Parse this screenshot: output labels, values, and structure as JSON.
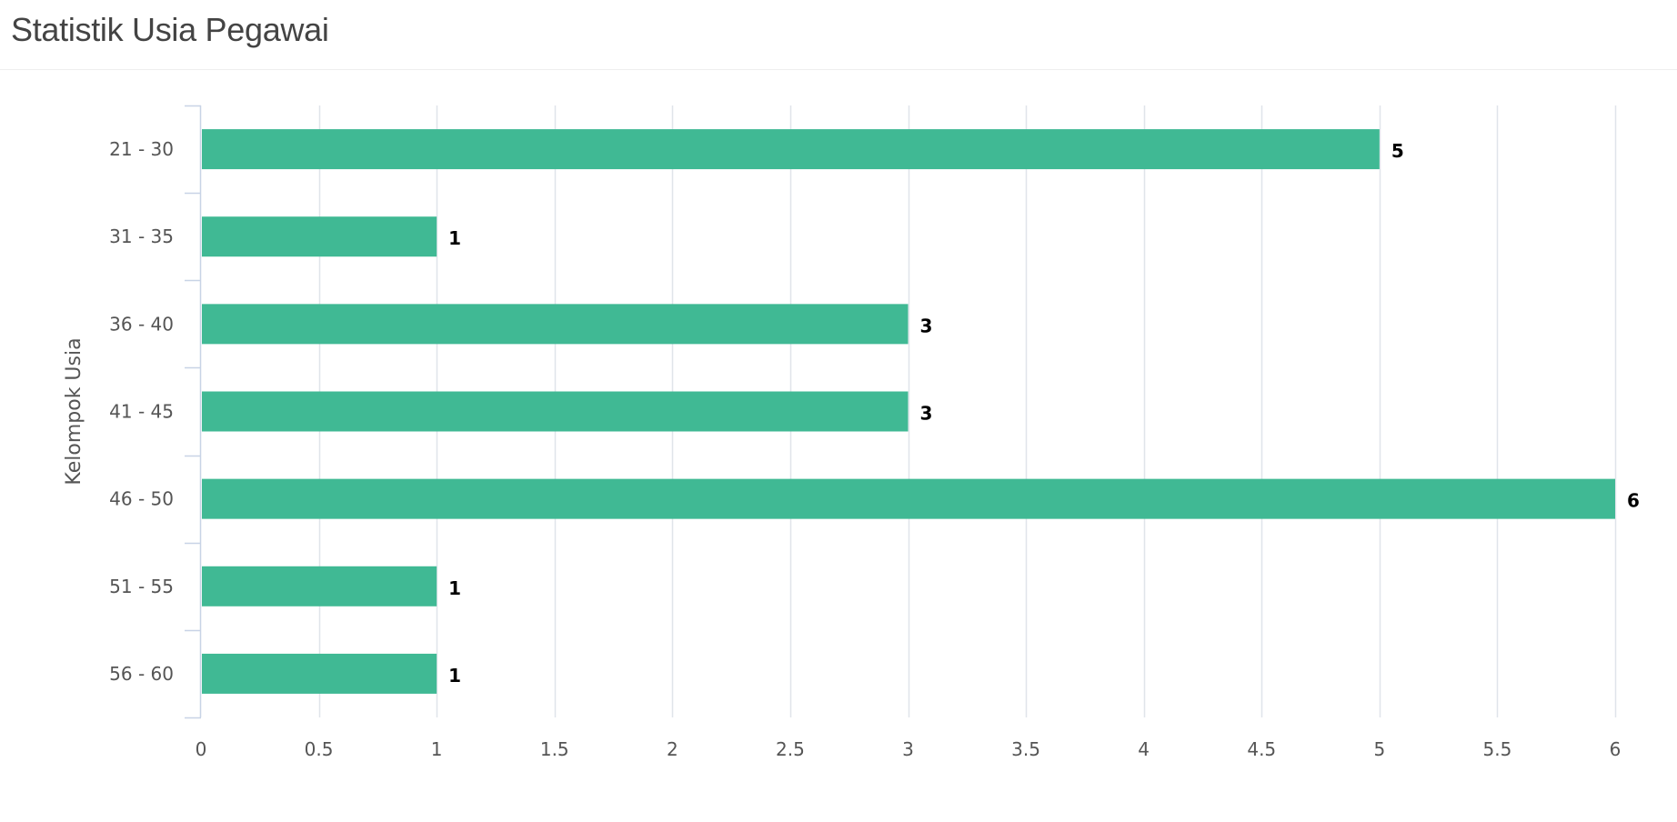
{
  "header": {
    "title": "Statistik Usia Pegawai"
  },
  "chart_data": {
    "type": "bar",
    "orientation": "horizontal",
    "categories": [
      "21 - 30",
      "31 - 35",
      "36 - 40",
      "41 - 45",
      "46 - 50",
      "51 - 55",
      "56 - 60"
    ],
    "values": [
      5,
      1,
      3,
      3,
      6,
      1,
      1
    ],
    "data_labels": [
      "5",
      "1",
      "3",
      "3",
      "6",
      "1",
      "1"
    ],
    "xlim": [
      0,
      6
    ],
    "x_ticks": [
      "0",
      "0.5",
      "1",
      "1.5",
      "2",
      "2.5",
      "3",
      "3.5",
      "4",
      "4.5",
      "5",
      "5.5",
      "6"
    ],
    "x_tick_values": [
      0,
      0.5,
      1,
      1.5,
      2,
      2.5,
      3,
      3.5,
      4,
      4.5,
      5,
      5.5,
      6
    ],
    "ylabel": "Kelompok Usia",
    "xlabel": "",
    "grid": true,
    "legend": false,
    "colors": {
      "bar": "#40b994",
      "grid": "#e0e4ea",
      "axis": "#c8d3e6"
    }
  }
}
